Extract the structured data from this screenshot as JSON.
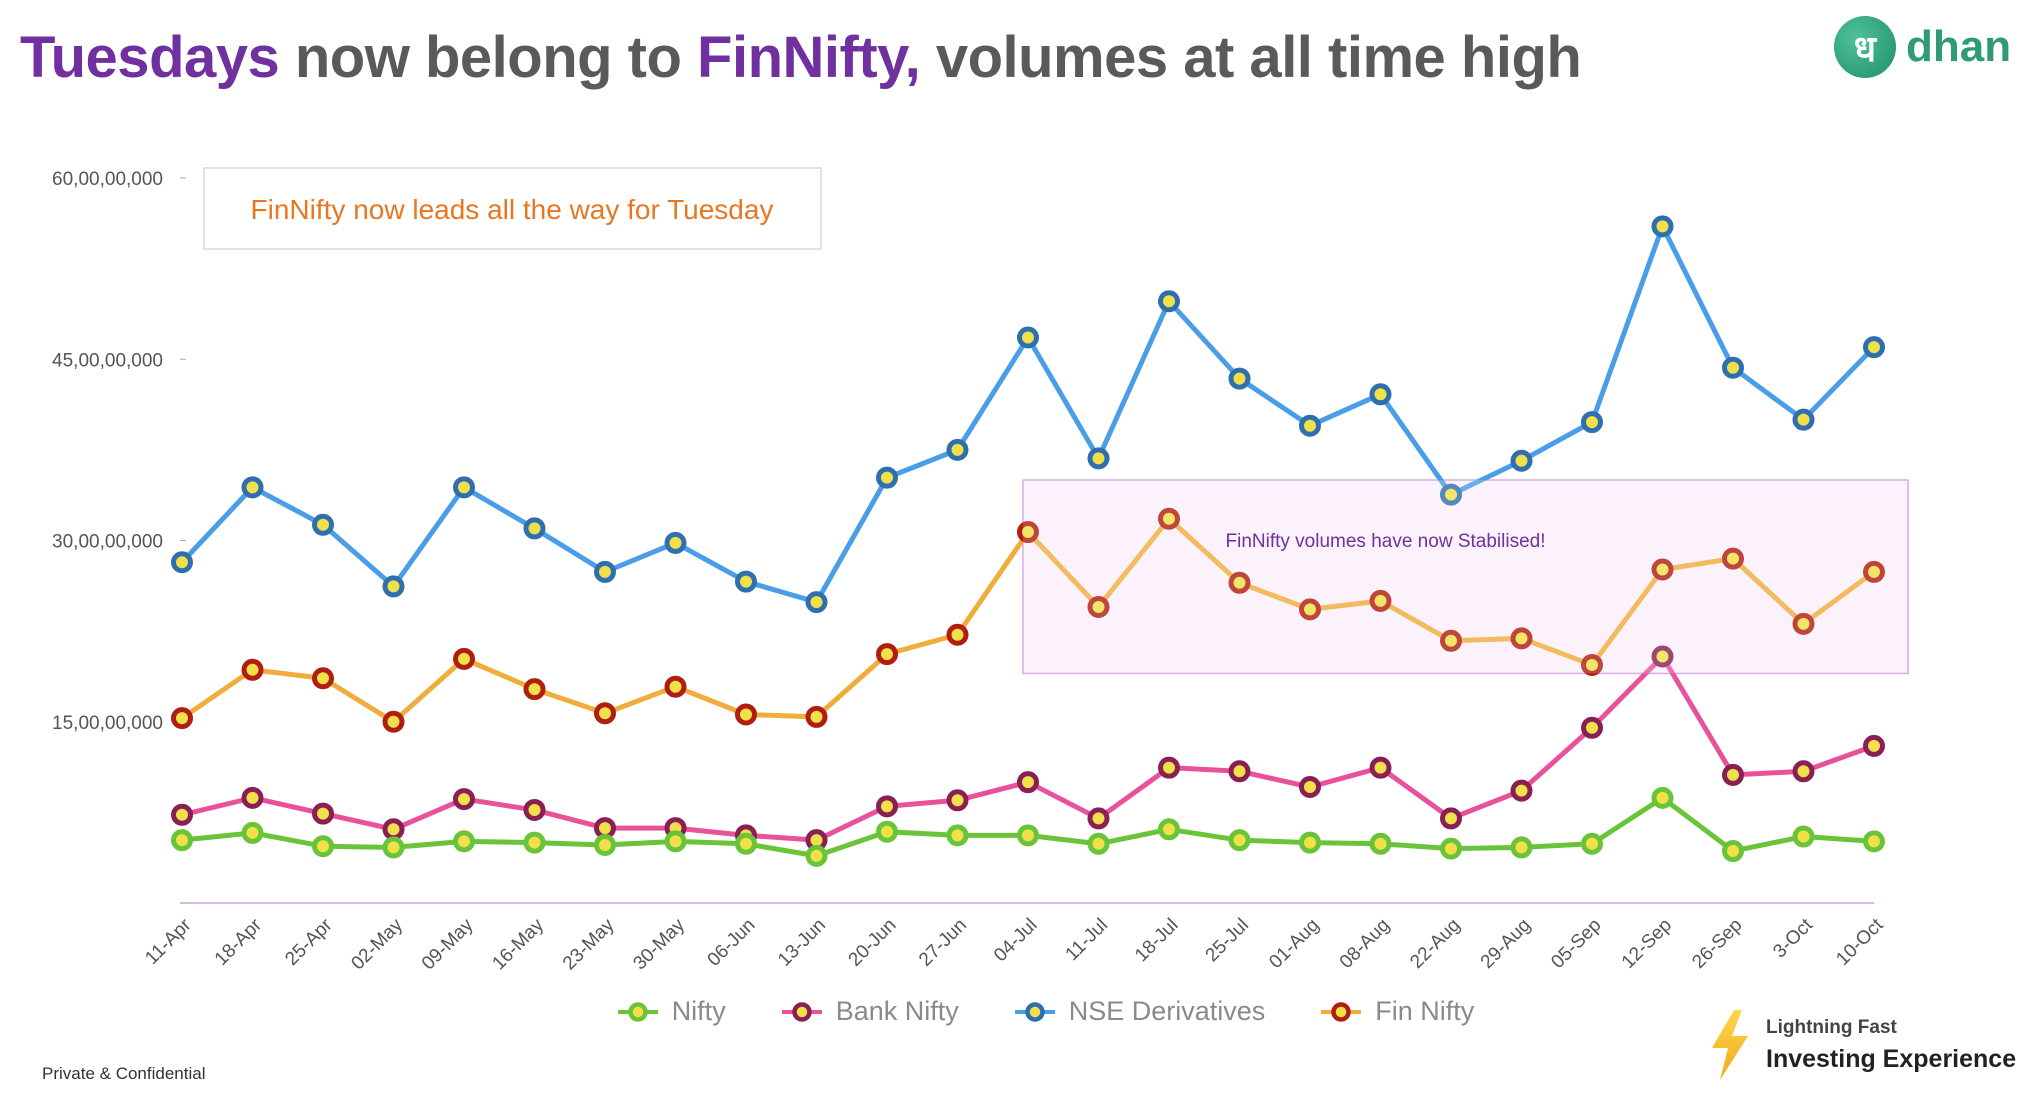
{
  "title": {
    "part1": "Tuesdays",
    "part2": " now belong to ",
    "part3": "FinNifty,",
    "part4": " volumes at all time high"
  },
  "logo": {
    "mark": "ध",
    "text": "dhan"
  },
  "footer": {
    "confidential": "Private & Confidential"
  },
  "badge": {
    "line1": "Lightning Fast",
    "line2": "Investing Experience"
  },
  "colors": {
    "title_gray": "#5a5a5a",
    "title_purple": "#7030a0",
    "nifty": "#6ac43a",
    "bank_nifty": "#e8529a",
    "nse_derivatives": "#4a9ee8",
    "fin_nifty": "#f0ad3c",
    "annotation_orange": "#e87722",
    "annotation_purple": "#7030a0"
  },
  "chart_data": {
    "type": "line",
    "title": "",
    "xlabel": "",
    "ylabel": "",
    "ylim": [
      0,
      600000000
    ],
    "yticks": [
      150000000,
      300000000,
      450000000,
      600000000
    ],
    "ytick_labels": [
      "15,00,00,000",
      "30,00,00,000",
      "45,00,00,000",
      "60,00,00,000"
    ],
    "grid": false,
    "legend_position": "bottom",
    "categories": [
      "11-Apr",
      "18-Apr",
      "25-Apr",
      "02-May",
      "09-May",
      "16-May",
      "23-May",
      "30-May",
      "06-Jun",
      "13-Jun",
      "20-Jun",
      "27-Jun",
      "04-Jul",
      "11-Jul",
      "18-Jul",
      "25-Jul",
      "01-Aug",
      "08-Aug",
      "22-Aug",
      "29-Aug",
      "05-Sep",
      "12-Sep",
      "26-Sep",
      "3-Oct",
      "10-Oct"
    ],
    "series": [
      {
        "name": "Nifty",
        "color": "#6ac43a",
        "marker_inner": "#f0e04a",
        "marker_ring": "#6ac43a",
        "values": [
          52000000,
          58000000,
          47000000,
          46000000,
          51000000,
          50000000,
          48000000,
          51000000,
          49000000,
          39000000,
          59000000,
          56000000,
          56000000,
          49000000,
          61000000,
          52000000,
          50000000,
          49000000,
          45000000,
          46000000,
          49000000,
          87000000,
          43000000,
          55000000,
          51000000
        ]
      },
      {
        "name": "Bank Nifty",
        "color": "#e8529a",
        "marker_inner": "#f0e04a",
        "marker_ring": "#8a1f55",
        "values": [
          73000000,
          87000000,
          74000000,
          61000000,
          86000000,
          77000000,
          62000000,
          62000000,
          56000000,
          52000000,
          80000000,
          85000000,
          100000000,
          70000000,
          112000000,
          109000000,
          96000000,
          112000000,
          70000000,
          93000000,
          145000000,
          204000000,
          106000000,
          109000000,
          130000000
        ]
      },
      {
        "name": "NSE Derivatives",
        "color": "#4a9ee8",
        "marker_inner": "#f0e04a",
        "marker_ring": "#2f6fb0",
        "values": [
          282000000,
          344000000,
          313000000,
          262000000,
          344000000,
          310000000,
          274000000,
          298000000,
          266000000,
          249000000,
          352000000,
          375000000,
          468000000,
          368000000,
          498000000,
          434000000,
          395000000,
          421000000,
          338000000,
          366000000,
          398000000,
          560000000,
          443000000,
          400000000,
          460000000
        ]
      },
      {
        "name": "Fin Nifty",
        "color": "#f0ad3c",
        "marker_inner": "#f0e04a",
        "marker_ring": "#b01e10",
        "values": [
          153000000,
          193000000,
          186000000,
          150000000,
          202000000,
          177000000,
          157000000,
          179000000,
          156000000,
          154000000,
          206000000,
          222000000,
          307000000,
          245000000,
          318000000,
          265000000,
          243000000,
          250000000,
          217000000,
          219000000,
          197000000,
          276000000,
          285000000,
          231000000,
          274000000
        ]
      }
    ],
    "annotations": [
      {
        "text": "FinNifty now leads all the way for Tuesday"
      },
      {
        "text": "FinNifty volumes have now Stabilised!",
        "span": [
          "04-Jul",
          "10-Oct"
        ],
        "y_range": [
          190000000,
          350000000
        ]
      }
    ]
  }
}
